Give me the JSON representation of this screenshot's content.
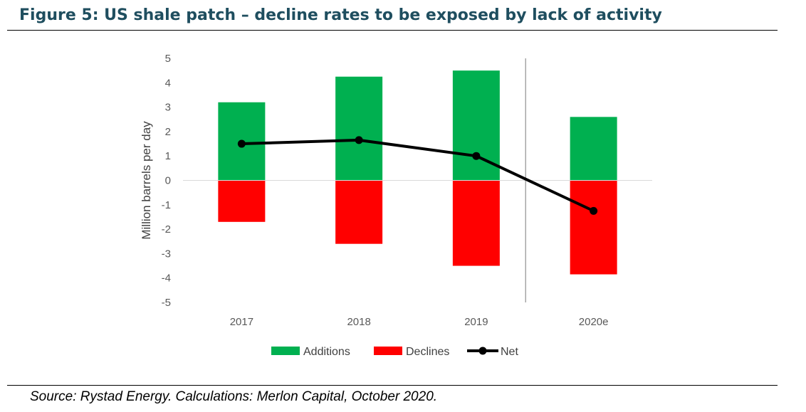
{
  "title": "Figure 5: US shale patch – decline rates to be exposed by lack of activity",
  "source": "Source: Rystad Energy. Calculations: Merlon Capital, October 2020.",
  "colors": {
    "additions": "#00b050",
    "declines": "#ff0000",
    "net": "#000000",
    "title": "#1f4e5f"
  },
  "chart_data": {
    "type": "bar",
    "categories": [
      "2017",
      "2018",
      "2019",
      "2020e"
    ],
    "series": [
      {
        "name": "Additions",
        "type": "bar",
        "values": [
          3.2,
          4.25,
          4.5,
          2.6
        ]
      },
      {
        "name": "Declines",
        "type": "bar",
        "values": [
          -1.7,
          -2.6,
          -3.5,
          -3.85
        ]
      },
      {
        "name": "Net",
        "type": "line",
        "values": [
          1.5,
          1.65,
          1.0,
          -1.25
        ]
      }
    ],
    "ylabel": "Million barrels per day",
    "ylim": [
      -5,
      5
    ],
    "yticks": [
      "5",
      "4",
      "3",
      "2",
      "1",
      "0",
      "-1",
      "-2",
      "-3",
      "-4",
      "-5"
    ],
    "stacked": true,
    "divider_after_category": "2019",
    "legend_position": "bottom",
    "grid": false
  }
}
